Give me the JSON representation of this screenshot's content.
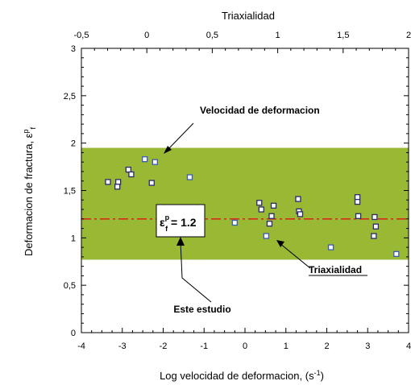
{
  "chart_data": {
    "type": "scatter",
    "title": "",
    "xlabel": "Log velocidad de deformacion, (s",
    "xlabel_sup": "-1",
    "xlabel_close": ")",
    "ylabel": "Deformacion de fractura, ε",
    "ylabel_sup": "p",
    "ylabel_sub": "f",
    "top_xlabel": "Triaxialidad",
    "xlim": [
      -4,
      4
    ],
    "ylim": [
      0,
      3
    ],
    "top_xlim": [
      -0.5,
      2
    ],
    "x_ticks": [
      "-4",
      "-3",
      "-2",
      "-1",
      "0",
      "1",
      "2",
      "3",
      "4"
    ],
    "y_ticks": [
      "0",
      "0,5",
      "1",
      "1,5",
      "2",
      "2,5",
      "3"
    ],
    "top_x_ticks": [
      "-0,5",
      "0",
      "0,5",
      "1",
      "1,5",
      "2"
    ],
    "band": {
      "ymin": 0.77,
      "ymax": 1.95,
      "color": "#99b833"
    },
    "reference_line": {
      "y": 1.2,
      "color": "#d62c1a"
    },
    "colors": {
      "point_fill": "#ffffff",
      "point_stroke": "#2a2a6e",
      "text": "#000000"
    },
    "series": [
      {
        "marker": "square",
        "points": [
          {
            "x": -3.35,
            "y": 1.59
          },
          {
            "x": -3.1,
            "y": 1.59
          },
          {
            "x": -3.12,
            "y": 1.54
          },
          {
            "x": -2.85,
            "y": 1.72
          },
          {
            "x": -2.78,
            "y": 1.67
          },
          {
            "x": -2.28,
            "y": 1.58
          },
          {
            "x": 0.35,
            "y": 1.37
          },
          {
            "x": 0.4,
            "y": 1.3
          },
          {
            "x": 0.6,
            "y": 1.15
          },
          {
            "x": 0.65,
            "y": 1.23
          },
          {
            "x": 0.7,
            "y": 1.34
          },
          {
            "x": 1.3,
            "y": 1.41
          },
          {
            "x": 1.32,
            "y": 1.28
          },
          {
            "x": 1.35,
            "y": 1.25
          },
          {
            "x": 2.75,
            "y": 1.43
          },
          {
            "x": 2.75,
            "y": 1.38
          },
          {
            "x": 2.77,
            "y": 1.23
          },
          {
            "x": 3.17,
            "y": 1.22
          },
          {
            "x": 3.2,
            "y": 1.12
          },
          {
            "x": 3.15,
            "y": 1.02
          }
        ]
      },
      {
        "marker": "square-blue",
        "points": [
          {
            "x": -2.45,
            "y": 1.83
          },
          {
            "x": -2.2,
            "y": 1.8
          },
          {
            "x": -1.35,
            "y": 1.64
          },
          {
            "x": -0.25,
            "y": 1.16
          },
          {
            "x": 0.52,
            "y": 1.02
          },
          {
            "x": 2.1,
            "y": 0.9
          },
          {
            "x": 3.7,
            "y": 0.83
          }
        ]
      }
    ],
    "annotations": {
      "velocidad": "Velocidad de deformacion",
      "triaxialidad": "Triaxialidad",
      "estudio": "Este estudio",
      "eq_prefix": "ε",
      "eq_sup": "p",
      "eq_sub": "f",
      "eq_value": " = 1.2"
    }
  }
}
